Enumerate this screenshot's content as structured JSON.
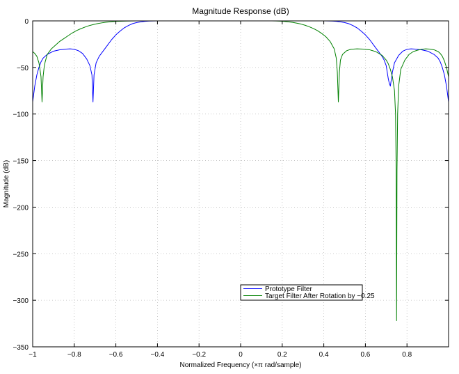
{
  "chart_data": {
    "type": "line",
    "title": "Magnitude Response (dB)",
    "xlabel": "Normalized Frequency (×π rad/sample)",
    "ylabel": "Magnitude (dB)",
    "xlim": [
      -1,
      1
    ],
    "ylim": [
      -350,
      0
    ],
    "xticks": [
      -1,
      -0.8,
      -0.6,
      -0.4,
      -0.2,
      0,
      0.2,
      0.4,
      0.6,
      0.8
    ],
    "xtick_labels": [
      "−1",
      "−0.8",
      "−0.6",
      "−0.4",
      "−0.2",
      "0",
      "0.2",
      "0.4",
      "0.6",
      "0.8"
    ],
    "yticks": [
      0,
      -50,
      -100,
      -150,
      -200,
      -250,
      -300,
      -350
    ],
    "ytick_labels": [
      "0",
      "−50",
      "−100",
      "−150",
      "−200",
      "−250",
      "−300",
      "−350"
    ],
    "grid": true,
    "legend_position": "lower-center",
    "series": [
      {
        "name": "Prototype Filter",
        "color": "#0000ff",
        "x": [
          -1.0,
          -0.99,
          -0.98,
          -0.97,
          -0.96,
          -0.95,
          -0.93,
          -0.9,
          -0.87,
          -0.84,
          -0.82,
          -0.8,
          -0.78,
          -0.76,
          -0.74,
          -0.725,
          -0.715,
          -0.71,
          -0.705,
          -0.695,
          -0.68,
          -0.66,
          -0.64,
          -0.62,
          -0.6,
          -0.58,
          -0.56,
          -0.54,
          -0.52,
          -0.5,
          -0.48,
          -0.46,
          -0.44,
          -0.42,
          -0.4,
          -0.3,
          -0.2,
          -0.1,
          0.0,
          0.1,
          0.2,
          0.3,
          0.4,
          0.42,
          0.44,
          0.46,
          0.48,
          0.5,
          0.52,
          0.54,
          0.56,
          0.58,
          0.6,
          0.62,
          0.64,
          0.66,
          0.68,
          0.69,
          0.7,
          0.705,
          0.71,
          0.715,
          0.72,
          0.73,
          0.74,
          0.76,
          0.78,
          0.8,
          0.82,
          0.84,
          0.87,
          0.9,
          0.93,
          0.95,
          0.96,
          0.97,
          0.98,
          0.99,
          1.0
        ],
        "y": [
          -87,
          -70,
          -58,
          -50,
          -44,
          -40,
          -36,
          -32.5,
          -31,
          -30.3,
          -30,
          -30.5,
          -32,
          -35,
          -41,
          -48,
          -58,
          -87,
          -58,
          -45,
          -38,
          -32,
          -26,
          -20,
          -15,
          -11,
          -7.5,
          -5,
          -3,
          -1.8,
          -1,
          -0.5,
          -0.2,
          -0.1,
          0,
          0,
          0,
          0,
          0,
          0,
          0,
          0,
          0,
          -0.1,
          -0.2,
          -0.5,
          -1,
          -1.8,
          -3,
          -5,
          -7.5,
          -11,
          -15,
          -20,
          -26,
          -32,
          -38,
          -42,
          -48,
          -55,
          -62,
          -67,
          -70,
          -55,
          -45,
          -37,
          -32.5,
          -30.5,
          -30,
          -30.3,
          -31,
          -32.5,
          -36,
          -40,
          -44,
          -50,
          -58,
          -70,
          -87
        ]
      },
      {
        "name": "Target Filter After Rotation by −0.25",
        "color": "#008000",
        "x": [
          -1.0,
          -0.99,
          -0.98,
          -0.97,
          -0.965,
          -0.96,
          -0.955,
          -0.95,
          -0.945,
          -0.94,
          -0.93,
          -0.91,
          -0.89,
          -0.87,
          -0.85,
          -0.83,
          -0.81,
          -0.79,
          -0.77,
          -0.75,
          -0.73,
          -0.71,
          -0.69,
          -0.67,
          -0.65,
          -0.62,
          -0.6,
          -0.55,
          -0.5,
          -0.4,
          -0.2,
          0.0,
          0.1,
          0.15,
          0.17,
          0.19,
          0.21,
          0.23,
          0.25,
          0.27,
          0.29,
          0.31,
          0.33,
          0.35,
          0.37,
          0.39,
          0.41,
          0.43,
          0.45,
          0.46,
          0.465,
          0.47,
          0.475,
          0.48,
          0.49,
          0.51,
          0.53,
          0.56,
          0.59,
          0.62,
          0.65,
          0.68,
          0.7,
          0.71,
          0.72,
          0.73,
          0.74,
          0.745,
          0.748,
          0.75,
          0.752,
          0.755,
          0.76,
          0.77,
          0.79,
          0.81,
          0.83,
          0.85,
          0.87,
          0.89,
          0.91,
          0.93,
          0.95,
          0.96,
          0.97,
          0.98,
          0.99,
          1.0
        ],
        "y": [
          -33,
          -35,
          -38,
          -45,
          -52,
          -60,
          -87,
          -60,
          -50,
          -44,
          -36,
          -30,
          -26,
          -22,
          -19,
          -16,
          -13,
          -10.5,
          -8.5,
          -6.8,
          -5.2,
          -4,
          -3,
          -2.2,
          -1.5,
          -0.8,
          -0.5,
          -0.2,
          0,
          0,
          0,
          0,
          0,
          0,
          -0.1,
          -0.3,
          -0.6,
          -1,
          -1.6,
          -2.4,
          -3.4,
          -4.7,
          -6.3,
          -8.2,
          -10.5,
          -13.5,
          -17,
          -22,
          -30,
          -40,
          -55,
          -87,
          -55,
          -42,
          -36,
          -32,
          -30.5,
          -30,
          -30.3,
          -31,
          -33,
          -37,
          -42,
          -46,
          -52,
          -60,
          -75,
          -100,
          -160,
          -322,
          -160,
          -100,
          -70,
          -52,
          -42,
          -36,
          -33,
          -31.5,
          -30.5,
          -30,
          -30.3,
          -31,
          -33,
          -35,
          -38,
          -43,
          -50,
          -60
        ]
      }
    ]
  }
}
